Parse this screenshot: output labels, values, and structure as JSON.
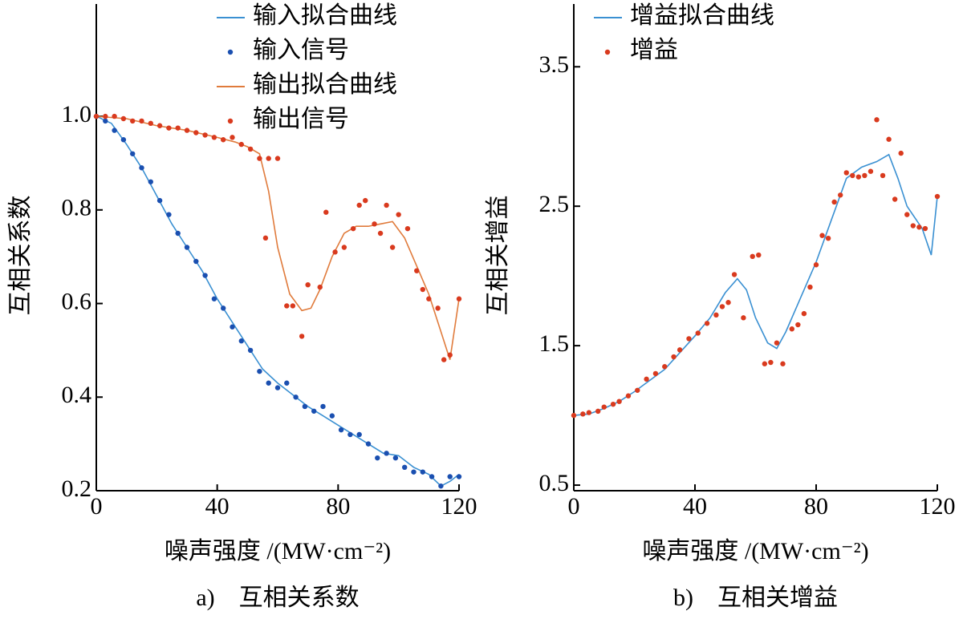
{
  "chart_data": [
    {
      "type": "line",
      "caption": "a)　互相关系数",
      "ylabel": "互相关系数",
      "xlabel": "噪声强度 /(MW·cm⁻²)",
      "xlim": [
        0,
        120
      ],
      "xticks": [
        0,
        40,
        80,
        120
      ],
      "ylim": [
        0.2,
        1.24
      ],
      "yticks": [
        0.2,
        0.4,
        0.6,
        0.8,
        {
          "value": 1,
          "label": "1.0"
        }
      ],
      "legend": "upper right",
      "series": [
        {
          "name": "输入拟合曲线",
          "style": "line",
          "color": "#3a90d2",
          "x": [
            0,
            5,
            10,
            15,
            20,
            25,
            30,
            35,
            40,
            45,
            50,
            55,
            60,
            65,
            70,
            75,
            80,
            85,
            90,
            95,
            100,
            105,
            110,
            114,
            117,
            120
          ],
          "values": [
            1.0,
            0.985,
            0.94,
            0.89,
            0.83,
            0.77,
            0.72,
            0.67,
            0.61,
            0.56,
            0.51,
            0.46,
            0.43,
            0.405,
            0.38,
            0.36,
            0.34,
            0.32,
            0.3,
            0.28,
            0.275,
            0.25,
            0.235,
            0.21,
            0.22,
            0.235
          ]
        },
        {
          "name": "输入信号",
          "style": "marker",
          "color": "#1a4fb0",
          "x": [
            0,
            3,
            6,
            9,
            12,
            15,
            18,
            21,
            24,
            27,
            30,
            33,
            36,
            39,
            42,
            45,
            48,
            51,
            54,
            57,
            60,
            63,
            66,
            69,
            72,
            75,
            78,
            81,
            84,
            87,
            90,
            93,
            96,
            99,
            102,
            105,
            108,
            111,
            114,
            117,
            120
          ],
          "values": [
            1.0,
            0.99,
            0.97,
            0.95,
            0.92,
            0.89,
            0.86,
            0.82,
            0.79,
            0.75,
            0.72,
            0.69,
            0.66,
            0.61,
            0.59,
            0.55,
            0.52,
            0.5,
            0.455,
            0.43,
            0.42,
            0.43,
            0.4,
            0.38,
            0.37,
            0.38,
            0.36,
            0.33,
            0.32,
            0.32,
            0.3,
            0.27,
            0.28,
            0.27,
            0.25,
            0.24,
            0.24,
            0.23,
            0.21,
            0.23,
            0.23
          ]
        },
        {
          "name": "输出拟合曲线",
          "style": "line",
          "color": "#e07b3c",
          "x": [
            0,
            10,
            20,
            30,
            40,
            46,
            50,
            54,
            57,
            60,
            64,
            68,
            71,
            74,
            78,
            82,
            86,
            90,
            94,
            98,
            102,
            106,
            110,
            114,
            117,
            120
          ],
          "values": [
            1.0,
            0.995,
            0.98,
            0.97,
            0.955,
            0.945,
            0.935,
            0.92,
            0.84,
            0.72,
            0.62,
            0.585,
            0.59,
            0.63,
            0.7,
            0.75,
            0.765,
            0.765,
            0.77,
            0.775,
            0.74,
            0.68,
            0.62,
            0.54,
            0.48,
            0.61
          ]
        },
        {
          "name": "输出信号",
          "style": "marker",
          "color": "#d93a1e",
          "x": [
            0,
            3,
            6,
            9,
            12,
            15,
            18,
            21,
            24,
            27,
            30,
            33,
            36,
            39,
            42,
            45,
            48,
            51,
            54,
            56,
            57,
            60,
            63,
            65,
            68,
            70,
            74,
            76,
            79,
            82,
            85,
            87,
            89,
            92,
            94,
            96,
            98,
            100,
            103,
            106,
            108,
            110,
            113,
            115,
            117,
            120
          ],
          "values": [
            1.0,
            1.0,
            1.0,
            0.995,
            0.99,
            0.99,
            0.985,
            0.98,
            0.975,
            0.975,
            0.97,
            0.965,
            0.96,
            0.955,
            0.95,
            0.955,
            0.94,
            0.93,
            0.91,
            0.74,
            0.91,
            0.91,
            0.595,
            0.595,
            0.53,
            0.64,
            0.635,
            0.795,
            0.71,
            0.72,
            0.76,
            0.81,
            0.82,
            0.77,
            0.75,
            0.81,
            0.72,
            0.79,
            0.76,
            0.67,
            0.63,
            0.61,
            0.59,
            0.48,
            0.49,
            0.61
          ]
        }
      ]
    },
    {
      "type": "line",
      "caption": "b)　互相关增益",
      "ylabel": "互相关增益",
      "xlabel": "噪声强度 /(MW·cm⁻²)",
      "xlim": [
        0,
        120
      ],
      "xticks": [
        0,
        40,
        80,
        120
      ],
      "ylim": [
        0.46,
        3.95
      ],
      "yticks": [
        0.5,
        1.5,
        2.5,
        3.5
      ],
      "legend": "upper left",
      "series": [
        {
          "name": "增益拟合曲线",
          "style": "line",
          "color": "#3a90d2",
          "x": [
            0,
            5,
            10,
            15,
            20,
            25,
            30,
            35,
            40,
            45,
            50,
            54,
            57,
            60,
            64,
            67,
            70,
            75,
            80,
            85,
            90,
            95,
            100,
            104,
            107,
            110,
            115,
            118,
            120
          ],
          "values": [
            1.0,
            1.01,
            1.05,
            1.1,
            1.17,
            1.25,
            1.33,
            1.45,
            1.57,
            1.7,
            1.88,
            1.98,
            1.9,
            1.7,
            1.52,
            1.48,
            1.6,
            1.85,
            2.1,
            2.4,
            2.7,
            2.78,
            2.82,
            2.87,
            2.7,
            2.5,
            2.34,
            2.15,
            2.57
          ]
        },
        {
          "name": "增益",
          "style": "marker",
          "color": "#d93a1e",
          "x": [
            0,
            3,
            5,
            8,
            10,
            13,
            15,
            18,
            21,
            24,
            27,
            30,
            33,
            35,
            38,
            41,
            44,
            47,
            49,
            51,
            53,
            56,
            59,
            61,
            63,
            65,
            67,
            69,
            72,
            74,
            76,
            78,
            80,
            82,
            84,
            86,
            88,
            90,
            92,
            94,
            96,
            98,
            100,
            102,
            104,
            106,
            108,
            110,
            112,
            114,
            116,
            120
          ],
          "values": [
            1.0,
            1.01,
            1.02,
            1.03,
            1.06,
            1.08,
            1.1,
            1.14,
            1.18,
            1.26,
            1.3,
            1.35,
            1.42,
            1.47,
            1.55,
            1.59,
            1.66,
            1.72,
            1.78,
            1.81,
            2.01,
            1.7,
            2.14,
            2.15,
            1.37,
            1.38,
            1.52,
            1.37,
            1.62,
            1.65,
            1.73,
            1.92,
            2.08,
            2.29,
            2.27,
            2.53,
            2.58,
            2.74,
            2.72,
            2.71,
            2.72,
            2.75,
            3.12,
            2.72,
            2.98,
            2.55,
            2.88,
            2.44,
            2.36,
            2.35,
            2.34,
            2.57
          ]
        }
      ]
    }
  ]
}
